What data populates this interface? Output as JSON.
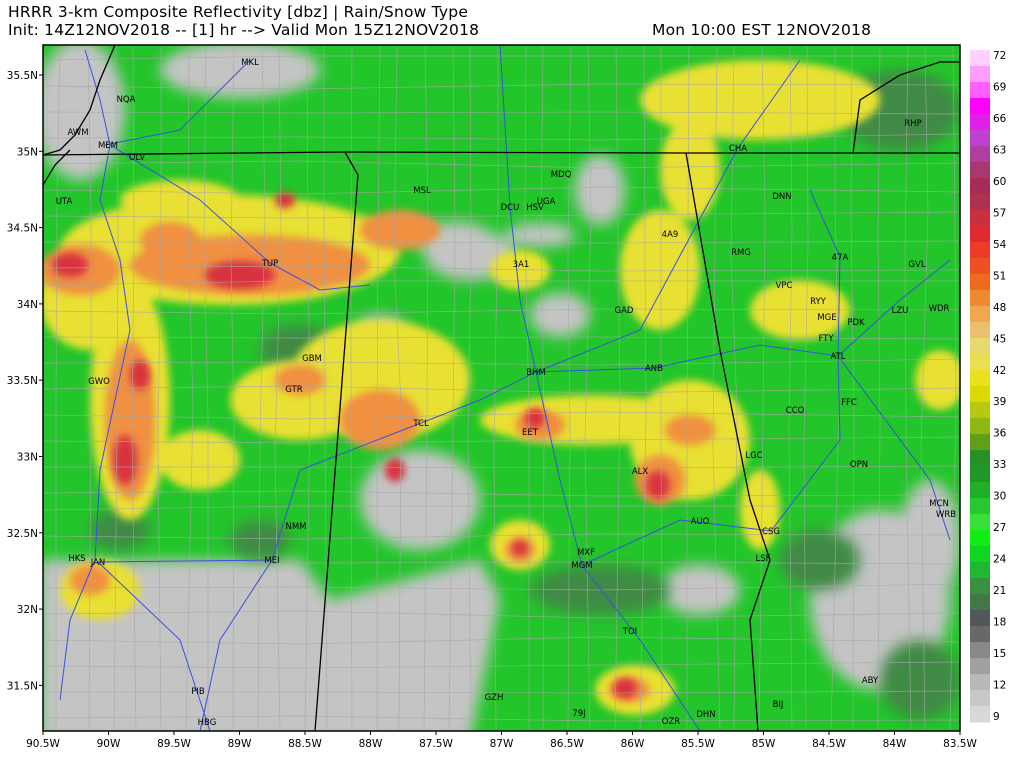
{
  "header": {
    "title": "HRRR 3-km Composite Reflectivity [dbz] | Rain/Snow Type",
    "init_line": "Init: 14Z12NOV2018 -- [1] hr --> Valid Mon 15Z12NOV2018",
    "local_time": "Mon 10:00 EST 12NOV2018"
  },
  "map": {
    "lon_range": [
      -90.5,
      -83.5
    ],
    "lat_range": [
      31.2,
      35.7
    ],
    "lon_ticks": [
      "90.5W",
      "90W",
      "89.5W",
      "89W",
      "88.5W",
      "88W",
      "87.5W",
      "87W",
      "86.5W",
      "86W",
      "85.5W",
      "85W",
      "84.5W",
      "84W",
      "83.5W"
    ],
    "lat_ticks": [
      "35.5N",
      "35N",
      "34.5N",
      "34N",
      "33.5N",
      "33N",
      "32.5N",
      "32N",
      "31.5N"
    ],
    "stations": [
      "MKL",
      "NQA",
      "AWM",
      "MEM",
      "OLV",
      "UTA",
      "MSL",
      "MDQ",
      "DCU",
      "HSV",
      "UGA",
      "TUP",
      "3A1",
      "4A9",
      "CHA",
      "DNN",
      "RMG",
      "47A",
      "GVL",
      "VPC",
      "RYY",
      "MGE",
      "PDK",
      "LZU",
      "WDR",
      "FTY",
      "ATL",
      "GAD",
      "GBM",
      "GTR",
      "BHM",
      "ANB",
      "GWO",
      "TCL",
      "EET",
      "CCO",
      "FFC",
      "LGC",
      "OPN",
      "ALX",
      "AUO",
      "CSG",
      "MCN",
      "WRB",
      "NMM",
      "MEI",
      "HKS",
      "JAN",
      "MXF",
      "MGM",
      "LSF",
      "TOI",
      "ABY",
      "PIB",
      "HBG",
      "GZH",
      "79J",
      "OZR",
      "DHN",
      "BIJ",
      "RHP"
    ],
    "colors": {
      "state_border": "#000000",
      "county": "#a8a8a8",
      "highway": "#3a50e0",
      "no_echo": "#c0c0c0"
    }
  },
  "colorbar": {
    "unit": "dbz",
    "labels": [
      "72",
      "69",
      "66",
      "63",
      "60",
      "57",
      "54",
      "51",
      "48",
      "45",
      "42",
      "39",
      "36",
      "33",
      "30",
      "27",
      "24",
      "21",
      "18",
      "15",
      "12",
      "9"
    ],
    "colors": [
      "#ffd0ff",
      "#ff9cff",
      "#ff60ff",
      "#ff00ff",
      "#e020e8",
      "#c040d0",
      "#b040a0",
      "#a83870",
      "#a82a58",
      "#b03050",
      "#c83040",
      "#e02a30",
      "#f03a28",
      "#f05020",
      "#f06a20",
      "#f08a30",
      "#f0a850",
      "#eac070",
      "#e8d870",
      "#e8e050",
      "#eae020",
      "#dada00",
      "#b8c810",
      "#90b810",
      "#60a018",
      "#289028",
      "#209828",
      "#20b028",
      "#28c830",
      "#38e038",
      "#10f010",
      "#10d820",
      "#20b830",
      "#389040",
      "#407848",
      "#505858",
      "#686868",
      "#888888",
      "#a0a0a0",
      "#b8b8b8",
      "#c8c8c8",
      "#d8d8d8"
    ]
  }
}
